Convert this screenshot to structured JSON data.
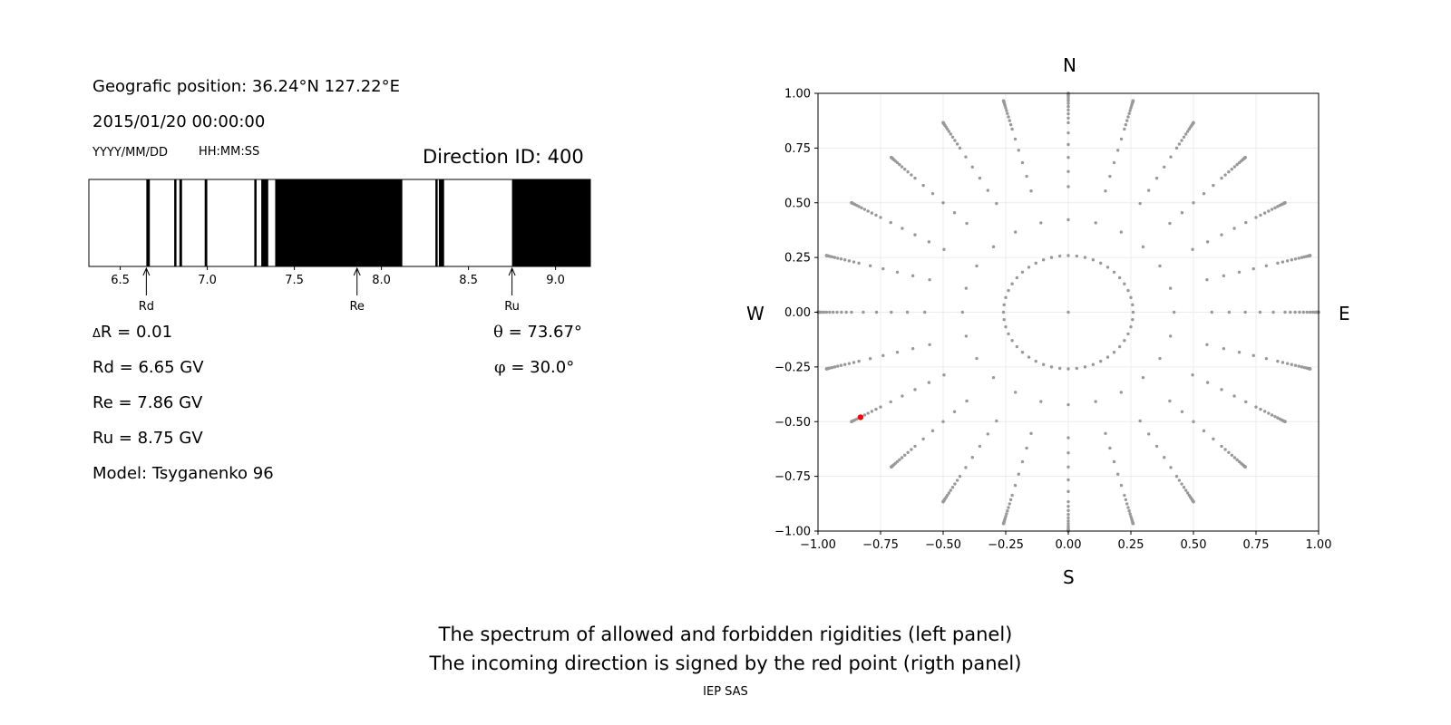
{
  "info": {
    "position": "Geografic position: 36.24°N 127.22°E",
    "datetime": "2015/01/20 00:00:00",
    "date_fmt": "YYYY/MM/DD",
    "time_fmt": "HH:MM:SS",
    "direction": "Direction ID: 400",
    "delta_r_symbol": "Δ",
    "delta_r": "R = 0.01",
    "rd": "Rd = 6.65 GV",
    "re": "Re = 7.86 GV",
    "ru": "Ru = 8.75 GV",
    "model": "Model: Tsyganenko 96",
    "theta_symbol": "θ",
    "theta": " = 73.67°",
    "phi_symbol": "φ",
    "phi": " = 30.0°"
  },
  "compass": {
    "n": "N",
    "s": "S",
    "w": "W",
    "e": "E"
  },
  "caption": {
    "line1": "The spectrum of allowed and forbidden rigidities (left panel)",
    "line2": "The incoming direction is signed by the red point (rigth panel)",
    "credit": "IEP SAS"
  },
  "colors": {
    "forbidden": "#000000",
    "allowed": "#ffffff",
    "grid_point": "#999999",
    "highlight": "#ff0000"
  },
  "chart_data": [
    {
      "type": "bar",
      "description_kind": "rigidity spectrum (black = forbidden, white = allowed)",
      "unit": "GV",
      "xlim": [
        6.32,
        9.2
      ],
      "xticks": [
        6.5,
        7.0,
        7.5,
        8.0,
        8.5,
        9.0
      ],
      "xtick_labels": [
        "6.5",
        "7.0",
        "7.5",
        "8.0",
        "8.5",
        "9.0"
      ],
      "forbidden_bands": [
        [
          6.65,
          6.67
        ],
        [
          6.81,
          6.82
        ],
        [
          6.84,
          6.855
        ],
        [
          6.985,
          7.0
        ],
        [
          7.27,
          7.28
        ],
        [
          7.31,
          7.35
        ],
        [
          7.39,
          8.12
        ],
        [
          8.31,
          8.32
        ],
        [
          8.33,
          8.36
        ],
        [
          8.75,
          9.2
        ]
      ],
      "markers": [
        {
          "label": "Rd",
          "value": 6.65
        },
        {
          "label": "Re",
          "value": 7.86
        },
        {
          "label": "Ru",
          "value": 8.75
        }
      ]
    },
    {
      "type": "scatter",
      "xlim": [
        -1.0,
        1.0
      ],
      "ylim": [
        -1.0,
        1.0
      ],
      "xticks": [
        -1.0,
        -0.75,
        -0.5,
        -0.25,
        0.0,
        0.25,
        0.5,
        0.75,
        1.0
      ],
      "xtick_labels": [
        "−1.00",
        "−0.75",
        "−0.50",
        "−0.25",
        "0.00",
        "0.25",
        "0.50",
        "0.75",
        "1.00"
      ],
      "yticks": [
        1.0,
        0.75,
        0.5,
        0.25,
        0.0,
        -0.25,
        -0.5,
        -0.75,
        -1.0
      ],
      "ytick_labels": [
        "1.00",
        "0.75",
        "0.50",
        "0.25",
        "0.00",
        "−0.25",
        "−0.50",
        "−0.75",
        "−1.00"
      ],
      "grid": true,
      "direction_grid": {
        "zenith_angles_deg": [
          0,
          15,
          25,
          35,
          40,
          45,
          50,
          55,
          60,
          62.5,
          65,
          67.5,
          70,
          72.5,
          75,
          77.5,
          80,
          82.5,
          85,
          87.5,
          90
        ],
        "azimuth_step_deg": 15,
        "inner_ring_azimuth_step_deg": 7.5,
        "inner_ring_zenith_deg": 15,
        "projection": "sin(zenith)"
      },
      "highlight_point": {
        "x": -0.83,
        "y": -0.48
      }
    }
  ]
}
